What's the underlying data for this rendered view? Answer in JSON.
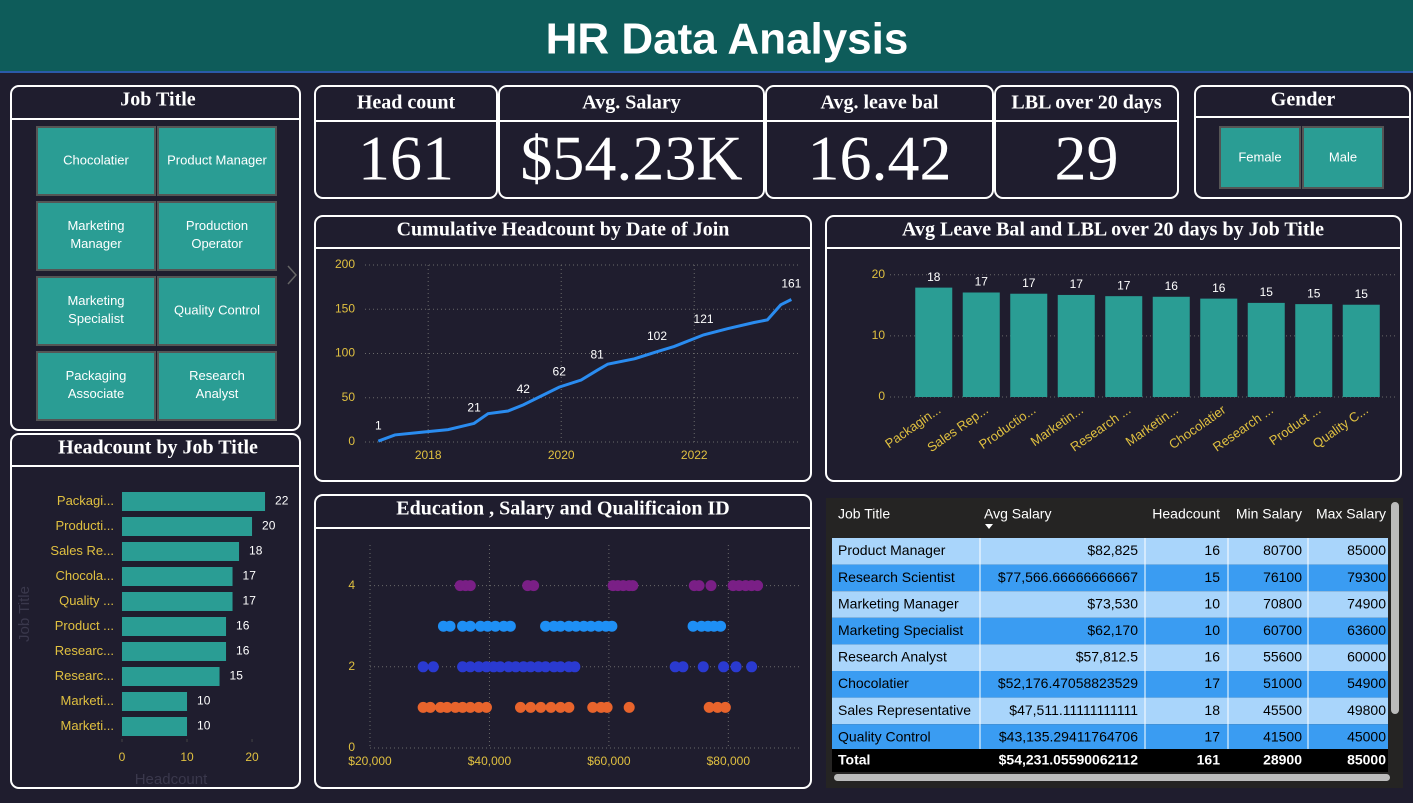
{
  "header": {
    "title": "HR Data Analysis"
  },
  "job_slicer": {
    "title": "Job Title",
    "items": [
      "Chocolatier",
      "Product Manager",
      "Marketing Manager",
      "Production Operator",
      "Marketing Specialist",
      "Quality Control",
      "Packaging Associate",
      "Research Analyst"
    ]
  },
  "cards": [
    {
      "label": "Head count",
      "value": 161
    },
    {
      "label": "Avg. Salary",
      "value": "$54.23K"
    },
    {
      "label": "Avg. leave bal",
      "value": 16.42
    },
    {
      "label": "LBL over 20 days",
      "value": 29
    }
  ],
  "gender_slicer": {
    "title": "Gender",
    "items": [
      "Female",
      "Male"
    ]
  },
  "chart_data": [
    {
      "type": "line",
      "title": "Cumulative Headcount by Date of Join",
      "color": "#2a8cf0",
      "grid": true,
      "x": [
        2017.25,
        2017.5,
        2017.9,
        2018.3,
        2018.69,
        2018.9,
        2019.2,
        2019.43,
        2019.7,
        2019.97,
        2020.3,
        2020.54,
        2020.7,
        2021.1,
        2021.44,
        2021.7,
        2022.14,
        2022.5,
        2022.9,
        2023.1,
        2023.3,
        2023.46
      ],
      "values": [
        1,
        8,
        11,
        14,
        21,
        32,
        35,
        42,
        52,
        62,
        70,
        81,
        88,
        94,
        102,
        108,
        121,
        128,
        135,
        138,
        155,
        161
      ],
      "value_labels": [
        "1",
        null,
        null,
        null,
        "21",
        null,
        null,
        "42",
        null,
        "62",
        null,
        "81",
        null,
        null,
        "102",
        null,
        "121",
        null,
        null,
        null,
        null,
        "161"
      ],
      "xlim": [
        2017.05,
        2023.59
      ],
      "xticks": [
        2018,
        2020,
        2022
      ],
      "ylim": [
        0,
        200
      ],
      "yticks": [
        0,
        50,
        100,
        150,
        200
      ]
    },
    {
      "type": "bar",
      "title": "Avg Leave Bal and LBL over 20 days by Job Title",
      "color": "#2a9d94",
      "grid": true,
      "categories": [
        "Packagin...",
        "Sales Rep...",
        "Productio...",
        "Marketin...",
        "Research ...",
        "Marketin...",
        "Chocolatier",
        "Research ...",
        "Product ...",
        "Quality C..."
      ],
      "values": [
        17.9,
        17.1,
        16.9,
        16.7,
        16.5,
        16.4,
        16.1,
        15.4,
        15.2,
        15.1
      ],
      "value_labels": [
        "18",
        "17",
        "17",
        "17",
        "17",
        "16",
        "16",
        "15",
        "15",
        "15"
      ],
      "ylim": [
        0,
        21.6
      ],
      "yticks": [
        0,
        10,
        20
      ]
    },
    {
      "type": "hbar",
      "title": "Headcount by Job Title",
      "color": "#2a9d94",
      "x_label": "Headcount",
      "y_label": "Job Title",
      "categories": [
        "Packagi...",
        "Producti...",
        "Sales Re...",
        "Chocola...",
        "Quality ...",
        "Product ...",
        "Researc...",
        "Researc...",
        "Marketi...",
        "Marketi..."
      ],
      "values": [
        22,
        20,
        18,
        17,
        17,
        16,
        16,
        15,
        10,
        10
      ],
      "xlim": [
        0,
        24.3
      ],
      "xticks": [
        0,
        10,
        20
      ]
    },
    {
      "type": "scatter",
      "title": "Education , Salary and Qualificaion ID",
      "grid": true,
      "series": [
        {
          "color": "#7a1f86",
          "x": [
            35100,
            36000,
            36800,
            46400,
            47400,
            60700,
            61500,
            62400,
            63400,
            64000,
            74300,
            75100,
            77100,
            80800,
            81800,
            82900,
            83900,
            84900
          ],
          "y": [
            4,
            4,
            4,
            4,
            4,
            4,
            4,
            4,
            4,
            4,
            4,
            4,
            4,
            4,
            4,
            4,
            4,
            4
          ]
        },
        {
          "color": "#1e8ff5",
          "x": [
            32300,
            33400,
            35500,
            36800,
            38500,
            39700,
            41000,
            42400,
            43500,
            49400,
            50800,
            51900,
            53300,
            54500,
            55800,
            57000,
            58300,
            59500,
            60500,
            74100,
            75500,
            76600,
            77600,
            78700
          ],
          "y": [
            3,
            3,
            3,
            3,
            3,
            3,
            3,
            3,
            3,
            3,
            3,
            3,
            3,
            3,
            3,
            3,
            3,
            3,
            3,
            3,
            3,
            3,
            3,
            3
          ]
        },
        {
          "color": "#2a3ad0",
          "x": [
            28900,
            30600,
            35500,
            36800,
            38200,
            39500,
            40700,
            41800,
            43200,
            44400,
            45700,
            46900,
            48200,
            49400,
            50800,
            51900,
            53300,
            54300,
            71100,
            72400,
            75800,
            79200,
            81300,
            83900
          ],
          "y": [
            2,
            2,
            2,
            2,
            2,
            2,
            2,
            2,
            2,
            2,
            2,
            2,
            2,
            2,
            2,
            2,
            2,
            2,
            2,
            2,
            2,
            2,
            2,
            2
          ]
        },
        {
          "color": "#e8642c",
          "x": [
            28900,
            30100,
            31800,
            32900,
            34300,
            35500,
            36800,
            38200,
            39500,
            45200,
            46900,
            48600,
            50300,
            51900,
            53300,
            57300,
            58700,
            59700,
            63400,
            76800,
            78200,
            79500
          ],
          "y": [
            1,
            1,
            1,
            1,
            1,
            1,
            1,
            1,
            1,
            1,
            1,
            1,
            1,
            1,
            1,
            1,
            1,
            1,
            1,
            1,
            1,
            1
          ]
        }
      ],
      "xlim": [
        20000,
        92000
      ],
      "xticks": [
        {
          "value": 20000,
          "label": "$20,000"
        },
        {
          "value": 40000,
          "label": "$40,000"
        },
        {
          "value": 60000,
          "label": "$60,000"
        },
        {
          "value": 80000,
          "label": "$80,000"
        }
      ],
      "ylim": [
        0,
        5
      ],
      "yticks": [
        0,
        2,
        4
      ]
    }
  ],
  "table": {
    "columns": [
      "Job Title",
      "Avg Salary",
      "Headcount",
      "Min Salary",
      "Max Salary"
    ],
    "rows": [
      [
        "Product Manager",
        "$82,825",
        "16",
        "80700",
        "85000"
      ],
      [
        "Research Scientist",
        "$77,566.66666666667",
        "15",
        "76100",
        "79300"
      ],
      [
        "Marketing Manager",
        "$73,530",
        "10",
        "70800",
        "74900"
      ],
      [
        "Marketing Specialist",
        "$62,170",
        "10",
        "60700",
        "63600"
      ],
      [
        "Research Analyst",
        "$57,812.5",
        "16",
        "55600",
        "60000"
      ],
      [
        "Chocolatier",
        "$52,176.47058823529",
        "17",
        "51000",
        "54900"
      ],
      [
        "Sales Representative",
        "$47,511.11111111111",
        "18",
        "45500",
        "49800"
      ],
      [
        "Quality Control",
        "$43,135.29411764706",
        "17",
        "41500",
        "45000"
      ]
    ],
    "total": [
      "Total",
      "$54,231.05590062112",
      "161",
      "28900",
      "85000"
    ]
  }
}
